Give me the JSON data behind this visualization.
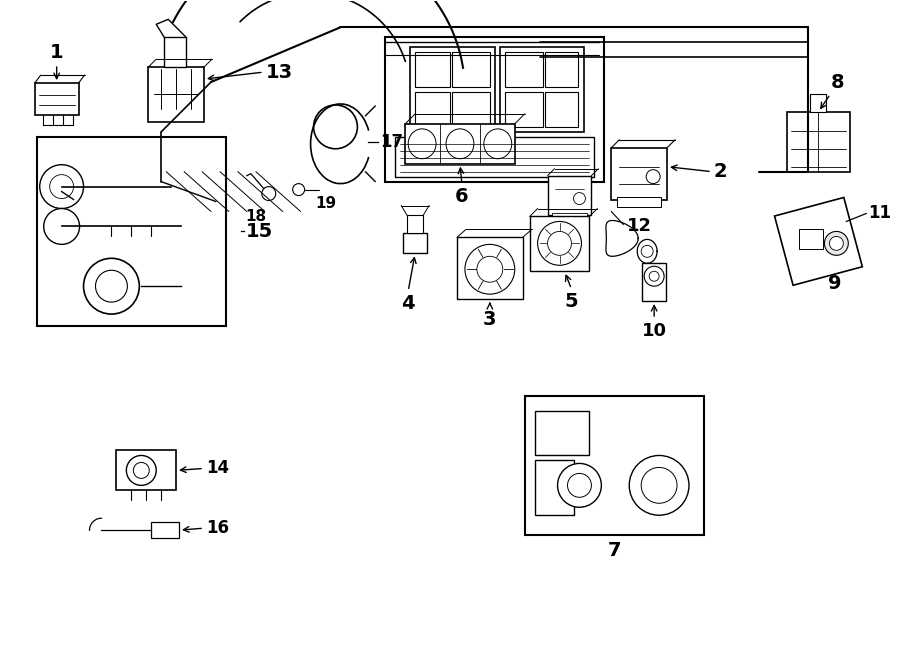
{
  "title": "",
  "bg_color": "#ffffff",
  "line_color": "#000000",
  "text_color": "#000000",
  "figsize": [
    9.0,
    6.61
  ],
  "dpi": 100
}
